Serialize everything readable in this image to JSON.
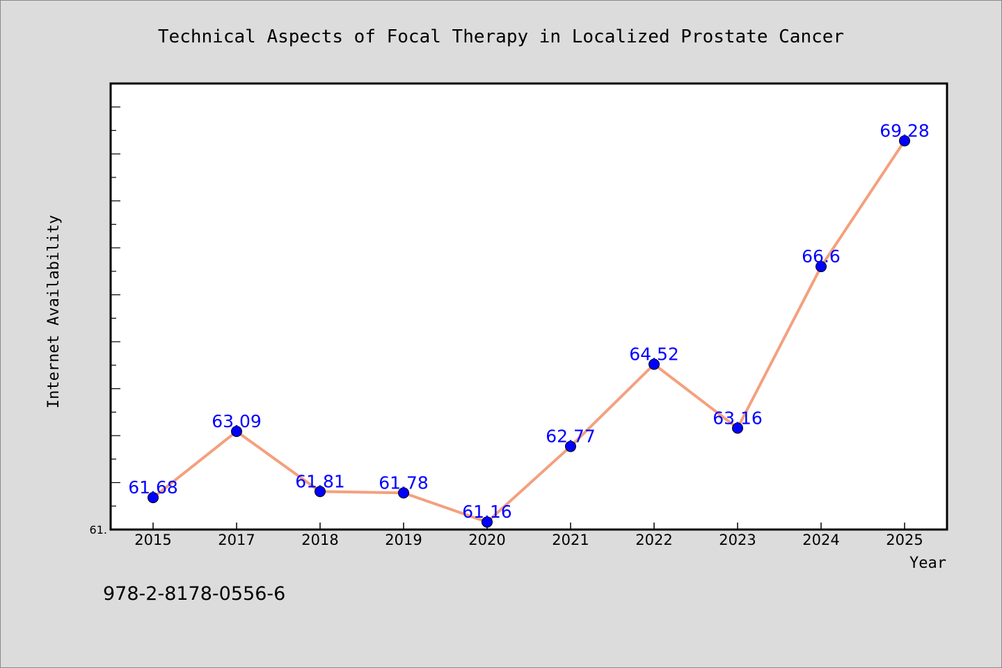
{
  "chart_data": {
    "type": "line",
    "title": "Technical Aspects of Focal Therapy in Localized Prostate Cancer",
    "xlabel": "Year",
    "ylabel": "Internet Availability",
    "categories": [
      "2015",
      "2017",
      "2018",
      "2019",
      "2020",
      "2021",
      "2022",
      "2023",
      "2024",
      "2025"
    ],
    "values": [
      61.68,
      63.09,
      61.81,
      61.78,
      61.16,
      62.77,
      64.52,
      63.16,
      66.6,
      69.28
    ],
    "data_labels": [
      "61.68",
      "63.09",
      "61.81",
      "61.78",
      "61.16",
      "62.77",
      "64.52",
      "63.16",
      "66.6",
      "69.28"
    ],
    "y_tick_label": "61.",
    "ylim": [
      61.0,
      70.5
    ],
    "grid": false,
    "line_color": "#f4a07e",
    "marker_color": "#0000ff",
    "label_color": "#0000ff",
    "background_color": "#dcdcdc",
    "plot_background": "#ffffff"
  },
  "footer_text": "978-2-8178-0556-6"
}
